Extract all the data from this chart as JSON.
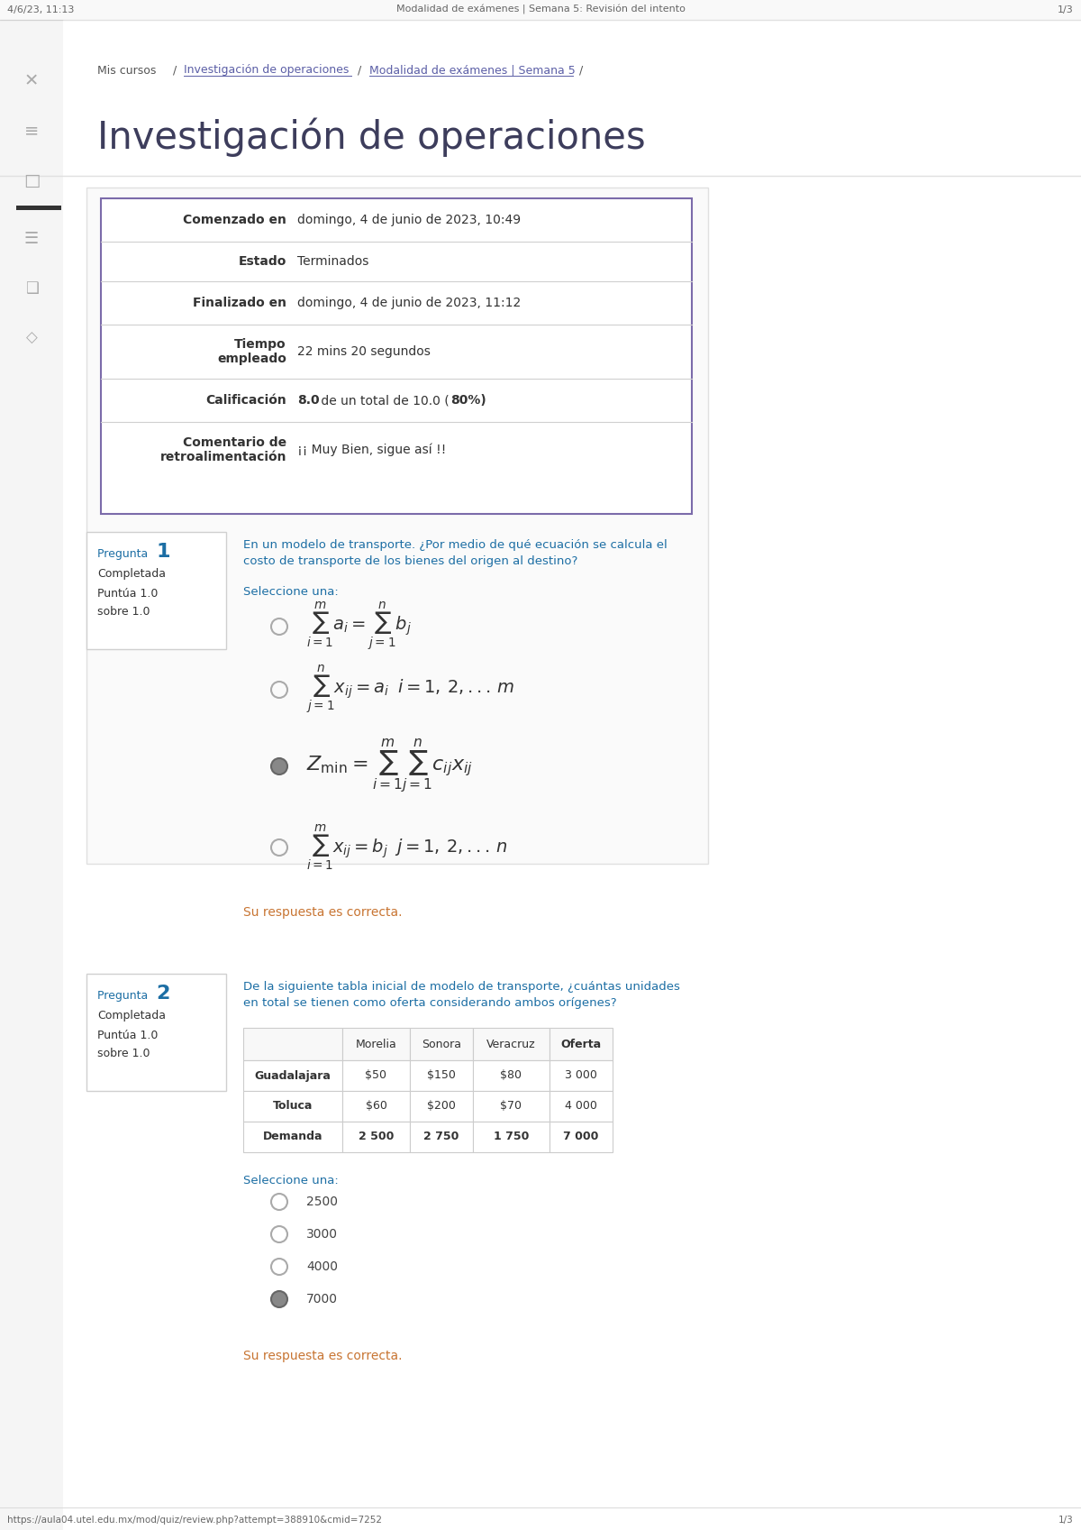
{
  "browser_bar_text": "4/6/23, 11:13",
  "browser_title": "Modalidad de exámenes | Semana 5: Revisión del intento",
  "page_title": "Investigación de operaciones",
  "info_rows": [
    {
      "label": "Comenzado en",
      "value": "domingo, 4 de junio de 2023, 10:49"
    },
    {
      "label": "Estado",
      "value": "Terminados"
    },
    {
      "label": "Finalizado en",
      "value": "domingo, 4 de junio de 2023, 11:12"
    },
    {
      "label": "Tiempo\nempleado",
      "value": "22 mins 20 segundos"
    },
    {
      "label": "Calificación",
      "value_bold": "8.0",
      "value_rest": " de un total de 10.0 (",
      "value_bold2": "80%",
      "value_end": ")"
    },
    {
      "label": "Comentario de\nretroalimentación",
      "value": "¡¡ Muy Bien, sigue así !!"
    }
  ],
  "q1_correct": "Su respuesta es correcta.",
  "q2_correct": "Su respuesta es correcta.",
  "table_headers": [
    "",
    "Morelia",
    "Sonora",
    "Veracruz",
    "Oferta"
  ],
  "table_rows": [
    [
      "Guadalajara",
      "$50",
      "$150",
      "$80",
      "3 000"
    ],
    [
      "Toluca",
      "$60",
      "$200",
      "$70",
      "4 000"
    ],
    [
      "Demanda",
      "2 500",
      "2 750",
      "1 750",
      "7 000"
    ]
  ],
  "q2_options_text": [
    "2500",
    "3000",
    "4000",
    "7000"
  ],
  "q2_selected_idx": 3,
  "footer_url": "https://aula04.utel.edu.mx/mod/quiz/review.php?attempt=388910&cmid=7252",
  "footer_pages": "1/3",
  "bg_color": "#ffffff",
  "border_color_purple": "#7b6baa",
  "border_color_light": "#e0e0e0",
  "q_box_border": "#d0d0d0",
  "question_text_color": "#1c6ea4",
  "correct_text_color": "#c87533",
  "formula_color": "#333333",
  "radio_fill": "#999999",
  "label_color": "#333333",
  "value_color": "#333333",
  "title_color": "#3d3d5c",
  "breadcrumb_link_color": "#5b5ea6",
  "breadcrumb_plain_color": "#555555",
  "browser_text_color": "#666666",
  "sidebar_icon_color": "#aaaaaa",
  "table_border_color": "#cccccc",
  "table_header_bg": "#f8f8f8"
}
